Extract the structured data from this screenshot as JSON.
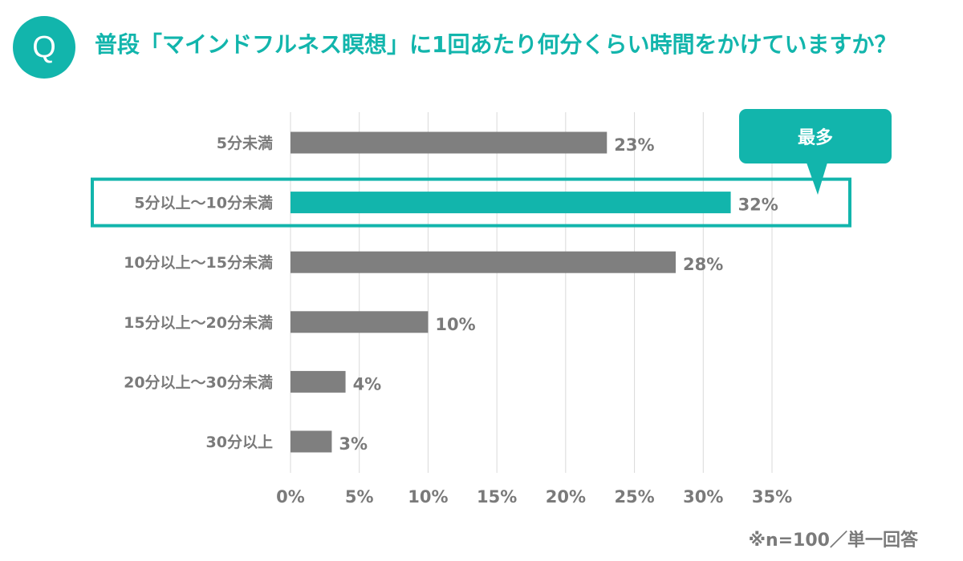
{
  "badge": "Q",
  "title": "普段「マインドフルネス瞑想」に1回あたり何分くらい時間をかけていますか？",
  "callout": "最多",
  "note": "※n=100／単一回答",
  "colors": {
    "accent": "#12b5ac",
    "bar": "#7f7f7f",
    "text": "#7a7a7a",
    "grid": "#d9d9d9"
  },
  "chart_data": {
    "type": "bar",
    "orientation": "horizontal",
    "title": "普段「マインドフルネス瞑想」に1回あたり何分くらい時間をかけていますか？",
    "categories": [
      "5分未満",
      "5分以上〜10分未満",
      "10分以上〜15分未満",
      "15分以上〜20分未満",
      "20分以上〜30分未満",
      "30分以上"
    ],
    "values": [
      23,
      32,
      28,
      10,
      4,
      3
    ],
    "value_labels": [
      "23%",
      "32%",
      "28%",
      "10%",
      "4%",
      "3%"
    ],
    "unit": "%",
    "xlim": [
      0,
      35
    ],
    "xticks": [
      0,
      5,
      10,
      15,
      20,
      25,
      30,
      35
    ],
    "xtick_labels": [
      "0%",
      "5%",
      "10%",
      "15%",
      "20%",
      "25%",
      "30%",
      "35%"
    ],
    "grid": true,
    "highlight_index": 1,
    "xlabel": "",
    "ylabel": ""
  }
}
